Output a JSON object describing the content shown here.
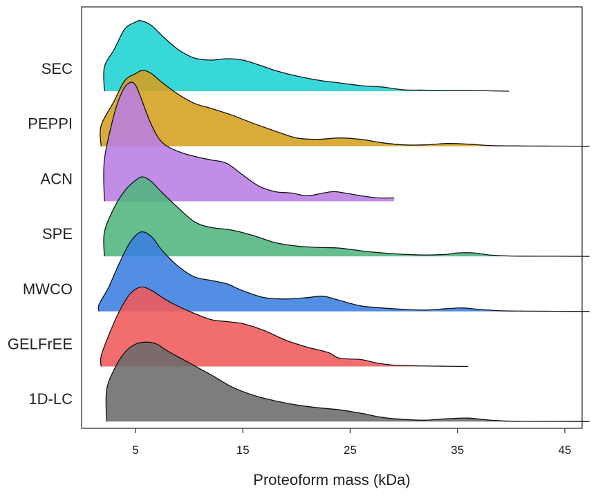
{
  "chart_data": {
    "type": "ridgeline",
    "title": "",
    "xlabel": "Proteoform mass (kDa)",
    "ylabel": "",
    "xlim": [
      0.5,
      47.3
    ],
    "xticks": [
      5,
      15,
      25,
      35,
      45
    ],
    "xtick_labels": [
      "5",
      "15",
      "25",
      "35",
      "45"
    ],
    "series": [
      {
        "name": "SEC",
        "color": "#1ed3d3",
        "x": [
          2.1,
          2.1,
          3,
          4,
          5,
          5.5,
          6.5,
          7.5,
          9,
          10.5,
          12,
          13.5,
          15,
          16.5,
          18,
          20,
          22,
          24,
          26,
          28,
          30,
          32,
          34,
          36,
          38,
          39.8
        ],
        "y": [
          0,
          0.35,
          0.6,
          0.9,
          1.0,
          1.02,
          0.95,
          0.8,
          0.6,
          0.48,
          0.45,
          0.47,
          0.45,
          0.38,
          0.3,
          0.22,
          0.16,
          0.12,
          0.08,
          0.06,
          0.02,
          0.015,
          0.01,
          0.01,
          0.005,
          0
        ]
      },
      {
        "name": "PEPPI",
        "color": "#d4a11e",
        "x": [
          1.8,
          1.8,
          3,
          4,
          5,
          5.7,
          6.5,
          7.5,
          9,
          10.5,
          12,
          14,
          16,
          18,
          20,
          22,
          24,
          26,
          28,
          30,
          32,
          34,
          36,
          38,
          40,
          42,
          44,
          46,
          47.3
        ],
        "y": [
          0,
          0.3,
          0.65,
          0.95,
          1.05,
          1.1,
          1.05,
          0.92,
          0.75,
          0.62,
          0.55,
          0.45,
          0.33,
          0.22,
          0.12,
          0.1,
          0.12,
          0.1,
          0.05,
          0.02,
          0.02,
          0.04,
          0.03,
          0.01,
          0.005,
          0.003,
          0.002,
          0.001,
          0
        ]
      },
      {
        "name": "ACN",
        "color": "#ba7de4",
        "x": [
          2.1,
          2.1,
          3,
          3.8,
          4.5,
          5,
          5.5,
          6.5,
          7.5,
          9,
          10.5,
          12,
          13.5,
          15,
          16.5,
          18,
          19.5,
          21,
          22.5,
          23.5,
          24.5,
          26,
          27.5,
          29.1
        ],
        "y": [
          0,
          0.6,
          1.25,
          1.6,
          1.72,
          1.68,
          1.5,
          1.1,
          0.85,
          0.72,
          0.65,
          0.6,
          0.55,
          0.38,
          0.22,
          0.14,
          0.12,
          0.08,
          0.12,
          0.14,
          0.12,
          0.08,
          0.05,
          0.05
        ]
      },
      {
        "name": "SPE",
        "color": "#4fb57e",
        "x": [
          2.1,
          2.1,
          3,
          4,
          5,
          5.7,
          6.5,
          7.5,
          9,
          10.5,
          12,
          14,
          16,
          18,
          20,
          22,
          24,
          26,
          28,
          30,
          32,
          34,
          35,
          36.5,
          38,
          40,
          42,
          44,
          47.3
        ],
        "y": [
          0,
          0.35,
          0.7,
          0.95,
          1.1,
          1.15,
          1.08,
          0.92,
          0.7,
          0.5,
          0.42,
          0.38,
          0.3,
          0.2,
          0.15,
          0.13,
          0.12,
          0.08,
          0.05,
          0.03,
          0.02,
          0.03,
          0.05,
          0.05,
          0.02,
          0.005,
          0.003,
          0.002,
          0
        ]
      },
      {
        "name": "MWCO",
        "color": "#3a7ee0",
        "x": [
          1.6,
          1.6,
          2.5,
          3.5,
          4.5,
          5.5,
          6.5,
          7.5,
          9,
          10.5,
          12,
          13.5,
          15,
          17,
          19,
          21,
          22.5,
          24,
          26,
          28,
          30,
          32,
          34,
          35.5,
          37,
          39,
          41,
          44,
          47.3
        ],
        "y": [
          0,
          0.1,
          0.35,
          0.7,
          1.0,
          1.15,
          1.08,
          0.88,
          0.65,
          0.5,
          0.45,
          0.4,
          0.3,
          0.2,
          0.18,
          0.2,
          0.22,
          0.16,
          0.08,
          0.05,
          0.03,
          0.02,
          0.04,
          0.05,
          0.03,
          0.01,
          0.005,
          0.002,
          0
        ]
      },
      {
        "name": "GELFrEE",
        "color": "#f05a5a",
        "x": [
          1.8,
          1.8,
          2.5,
          3.5,
          4.5,
          5.5,
          6.5,
          8,
          10,
          12,
          13.5,
          15,
          17,
          19,
          21,
          23,
          24,
          26,
          27.5,
          29,
          31,
          33,
          36
        ],
        "y": [
          0,
          0.15,
          0.45,
          0.8,
          1.05,
          1.15,
          1.1,
          0.95,
          0.8,
          0.68,
          0.65,
          0.62,
          0.52,
          0.38,
          0.28,
          0.2,
          0.12,
          0.1,
          0.05,
          0.02,
          0.01,
          0.005,
          0
        ]
      },
      {
        "name": "1D-LC",
        "color": "#6b6b6b",
        "x": [
          2.3,
          2.3,
          3,
          4,
          5,
          6,
          7,
          8,
          10,
          12,
          14,
          16,
          18,
          20,
          22,
          24,
          26,
          28,
          30,
          32,
          34,
          36,
          38,
          40,
          42,
          44,
          47.3
        ],
        "y": [
          0,
          0.45,
          0.75,
          1.0,
          1.12,
          1.15,
          1.12,
          1.02,
          0.85,
          0.68,
          0.5,
          0.38,
          0.3,
          0.24,
          0.2,
          0.17,
          0.12,
          0.06,
          0.03,
          0.02,
          0.04,
          0.05,
          0.02,
          0.005,
          0.003,
          0.002,
          0
        ]
      }
    ]
  }
}
